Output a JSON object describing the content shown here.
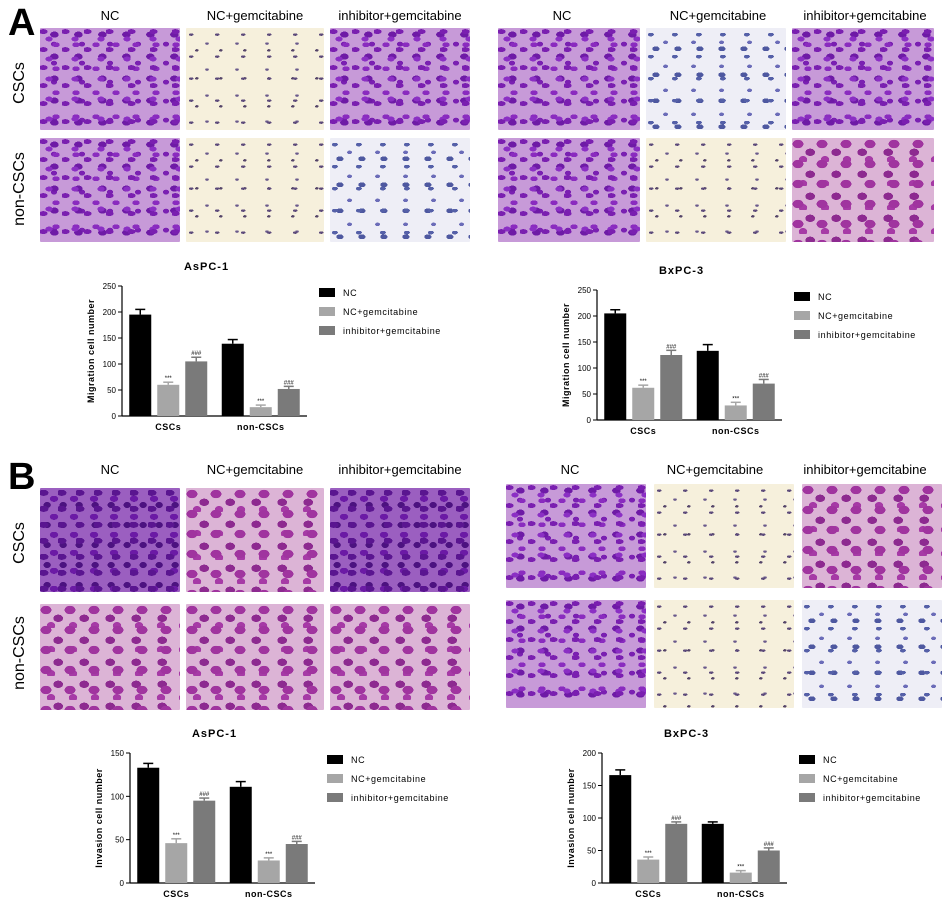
{
  "panels": [
    {
      "letter": "A",
      "groups": [
        "NC",
        "NC+gemcitabine",
        "inhibitor+gemcitabine"
      ],
      "rows": [
        "CSCs",
        "non-CSCs"
      ]
    },
    {
      "letter": "B",
      "groups": [
        "NC",
        "NC+gemcitabine",
        "inhibitor+gemcitabine"
      ],
      "rows": [
        "CSCs",
        "non-CSCs"
      ]
    }
  ],
  "colors": {
    "NC": "#000000",
    "NC+gemcitabine": "#a6a6a6",
    "inhibitor+gemcitabine": "#7a7a7a"
  },
  "chart_data": [
    {
      "type": "bar",
      "title": "AsPC-1",
      "ylabel": "Migration cell number",
      "categories": [
        "CSCs",
        "non-CSCs"
      ],
      "ylim": [
        0,
        250
      ],
      "yticks": [
        0,
        50,
        100,
        150,
        200,
        250
      ],
      "series": [
        {
          "name": "NC",
          "values": [
            195,
            139
          ],
          "errors": [
            10,
            8
          ]
        },
        {
          "name": "NC+gemcitabine",
          "values": [
            60,
            17
          ],
          "errors": [
            5,
            4
          ],
          "annotation": [
            "***",
            "***"
          ]
        },
        {
          "name": "inhibitor+gemcitabine",
          "values": [
            105,
            52
          ],
          "errors": [
            8,
            5
          ],
          "annotation": [
            "###",
            "###"
          ]
        }
      ],
      "legend": "right"
    },
    {
      "type": "bar",
      "title": "BxPC-3",
      "ylabel": "Migration cell number",
      "categories": [
        "CSCs",
        "non-CSCs"
      ],
      "ylim": [
        0,
        250
      ],
      "yticks": [
        0,
        50,
        100,
        150,
        200,
        250
      ],
      "series": [
        {
          "name": "NC",
          "values": [
            205,
            133
          ],
          "errors": [
            7,
            12
          ]
        },
        {
          "name": "NC+gemcitabine",
          "values": [
            62,
            28
          ],
          "errors": [
            5,
            6
          ],
          "annotation": [
            "***",
            "***"
          ]
        },
        {
          "name": "inhibitor+gemcitabine",
          "values": [
            125,
            70
          ],
          "errors": [
            9,
            8
          ],
          "annotation": [
            "###",
            "###"
          ]
        }
      ],
      "legend": "right"
    },
    {
      "type": "bar",
      "title": "AsPC-1",
      "ylabel": "Invasion cell number",
      "categories": [
        "CSCs",
        "non-CSCs"
      ],
      "ylim": [
        0,
        150
      ],
      "yticks": [
        0,
        50,
        100,
        150
      ],
      "series": [
        {
          "name": "NC",
          "values": [
            133,
            111
          ],
          "errors": [
            5,
            6
          ]
        },
        {
          "name": "NC+gemcitabine",
          "values": [
            46,
            26
          ],
          "errors": [
            5,
            3
          ],
          "annotation": [
            "***",
            "***"
          ]
        },
        {
          "name": "inhibitor+gemcitabine",
          "values": [
            95,
            45
          ],
          "errors": [
            3,
            3
          ],
          "annotation": [
            "###",
            "###"
          ]
        }
      ],
      "legend": "right"
    },
    {
      "type": "bar",
      "title": "BxPC-3",
      "ylabel": "Invasion cell number",
      "categories": [
        "CSCs",
        "non-CSCs"
      ],
      "ylim": [
        0,
        200
      ],
      "yticks": [
        0,
        50,
        100,
        150,
        200
      ],
      "series": [
        {
          "name": "NC",
          "values": [
            166,
            91
          ],
          "errors": [
            8,
            3
          ]
        },
        {
          "name": "NC+gemcitabine",
          "values": [
            36,
            16
          ],
          "errors": [
            4,
            3
          ],
          "annotation": [
            "***",
            "***"
          ]
        },
        {
          "name": "inhibitor+gemcitabine",
          "values": [
            91,
            50
          ],
          "errors": [
            3,
            4
          ],
          "annotation": [
            "###",
            "###"
          ]
        }
      ],
      "legend": "right"
    }
  ]
}
